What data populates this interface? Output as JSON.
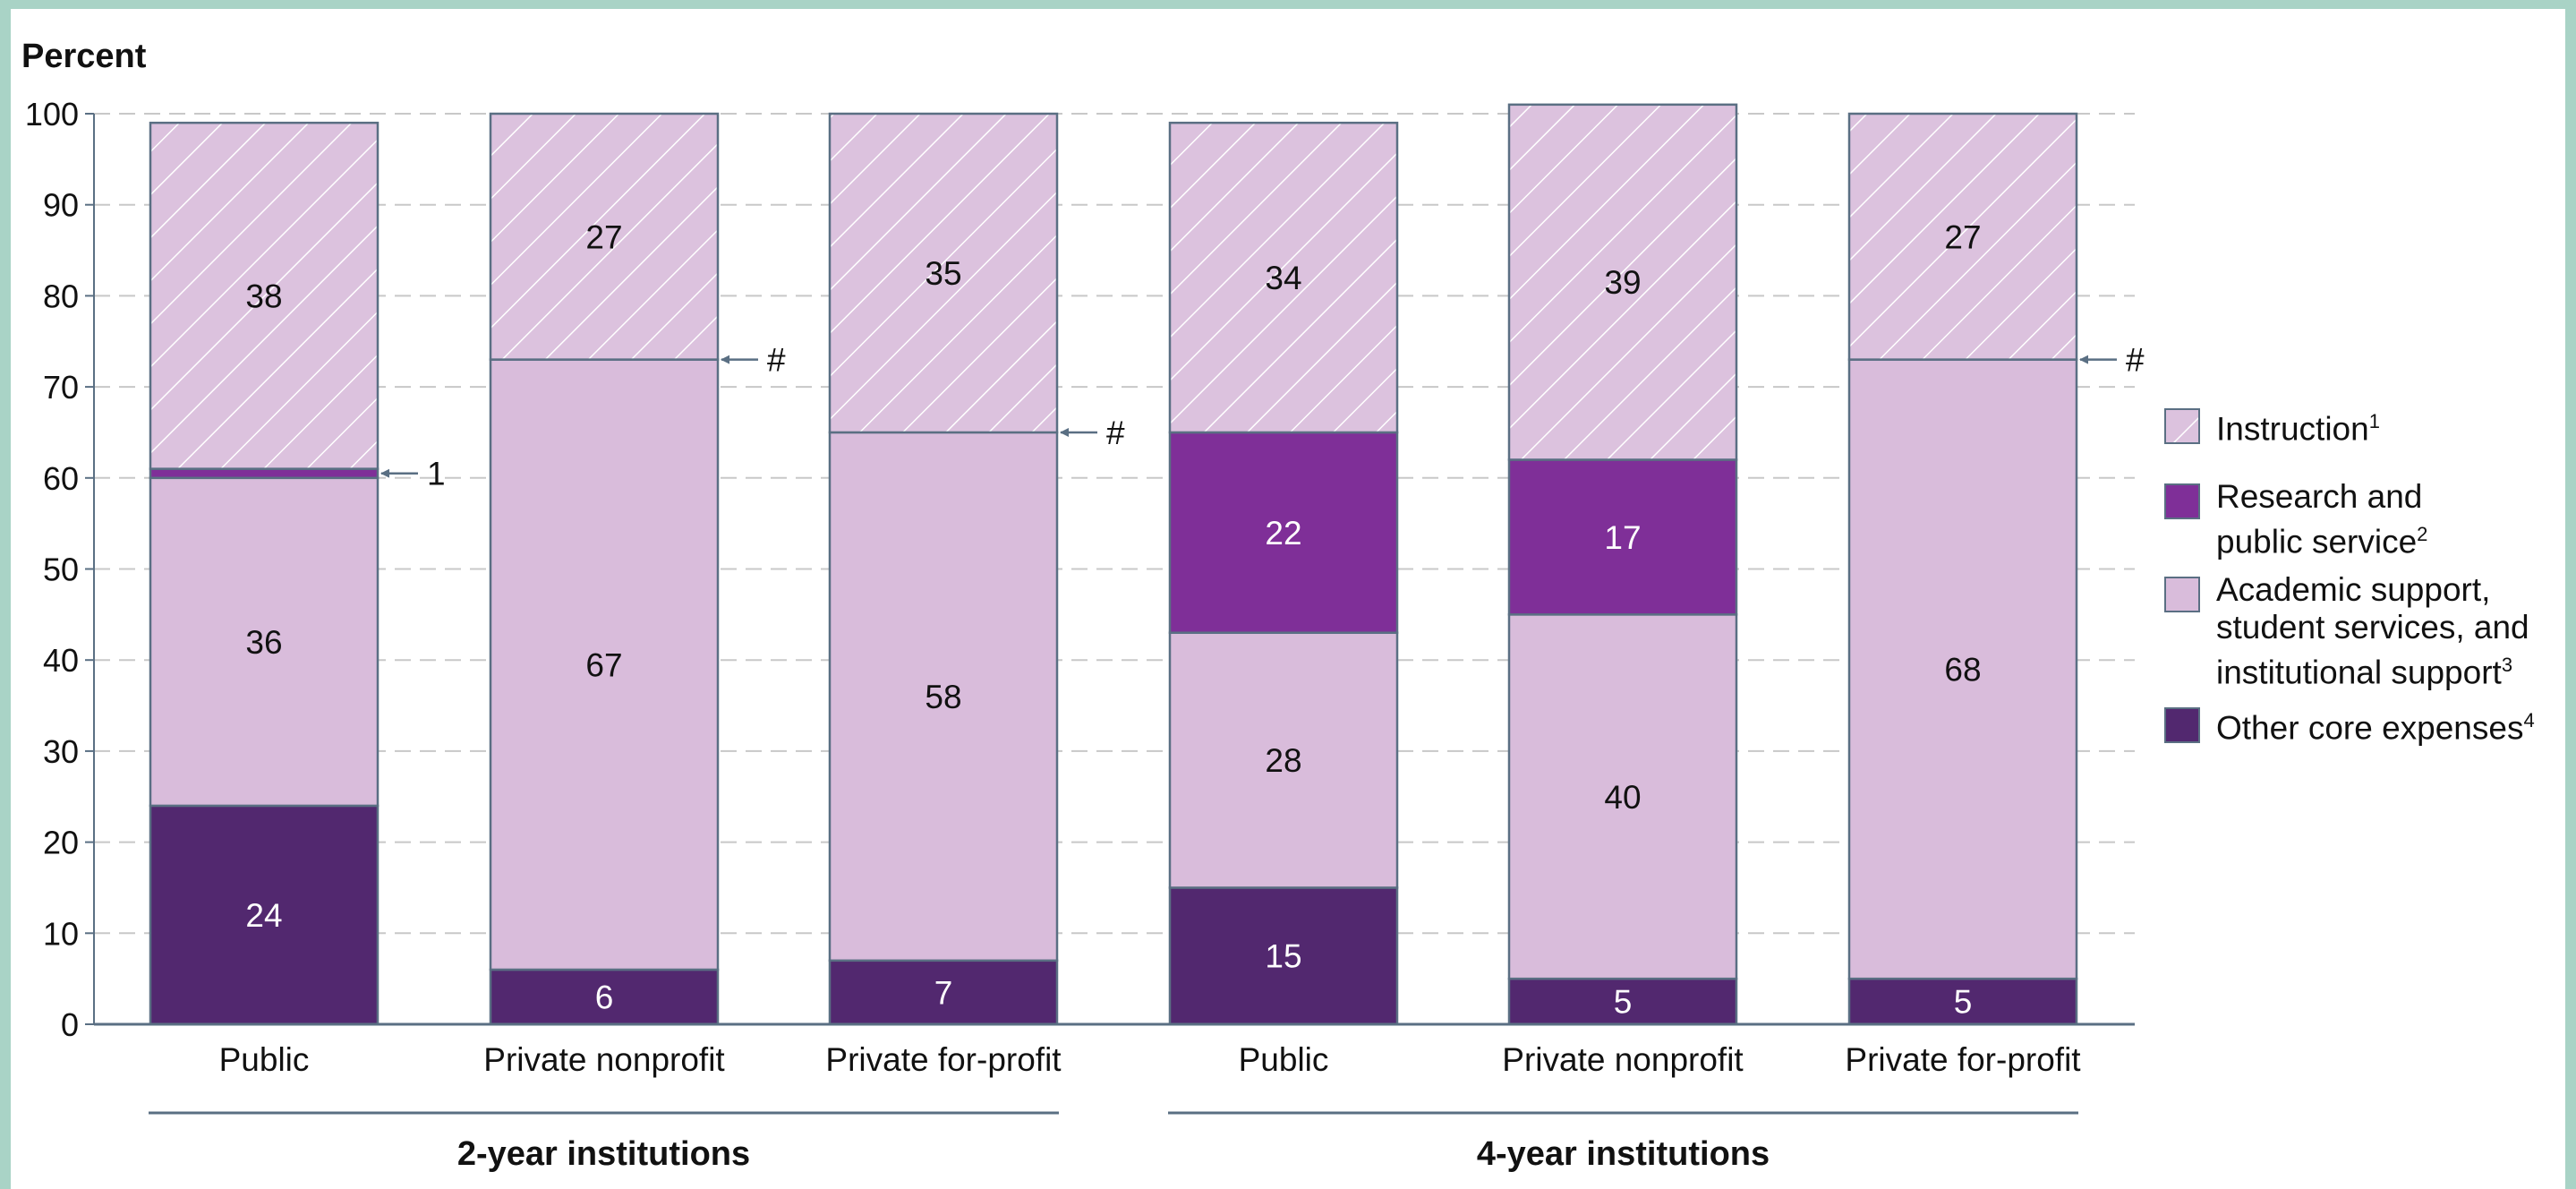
{
  "chart_data": {
    "type": "bar",
    "stacked": true,
    "ylabel": "Percent",
    "ylim": [
      0,
      100
    ],
    "yticks": [
      0,
      10,
      20,
      30,
      40,
      50,
      60,
      70,
      80,
      90,
      100
    ],
    "grid": true,
    "legend_position": "right",
    "categories": [
      "Public",
      "Private nonprofit",
      "Private for-profit",
      "Public",
      "Private nonprofit",
      "Private for-profit"
    ],
    "groups": [
      {
        "label": "2-year institutions",
        "categories": [
          0,
          1,
          2
        ]
      },
      {
        "label": "4-year institutions",
        "categories": [
          3,
          4,
          5
        ]
      }
    ],
    "series": [
      {
        "name": "Other core expenses",
        "sup": "4",
        "color": "#52286f",
        "label_color": "#ffffff",
        "values": [
          24,
          6,
          7,
          15,
          5,
          5
        ],
        "labels": [
          "24",
          "6",
          "7",
          "15",
          "5",
          "5"
        ]
      },
      {
        "name": "Academic support, student services, and institutional support",
        "sup": "3",
        "color": "#d9bcdb",
        "label_color": "#111111",
        "values": [
          36,
          67,
          58,
          28,
          40,
          68
        ],
        "labels": [
          "36",
          "67",
          "58",
          "28",
          "40",
          "68"
        ]
      },
      {
        "name": "Research and public service",
        "sup": "2",
        "color": "#7f2f98",
        "label_color": "#ffffff",
        "values": [
          1,
          0,
          0,
          22,
          17,
          0
        ],
        "labels": [
          "",
          "",
          "",
          "22",
          "17",
          ""
        ]
      },
      {
        "name": "Instruction",
        "sup": "1",
        "color": "#dcc2de",
        "hatch_color": "#ffffff",
        "label_color": "#111111",
        "values": [
          38,
          27,
          35,
          34,
          39,
          27
        ],
        "labels": [
          "38",
          "27",
          "35",
          "34",
          "39",
          "27"
        ]
      }
    ],
    "annotations": [
      {
        "category": 0,
        "text": "1"
      },
      {
        "category": 1,
        "text": "#"
      },
      {
        "category": 2,
        "text": "#"
      },
      {
        "category": 5,
        "text": "#"
      }
    ]
  },
  "legend": {
    "items": [
      {
        "label": "Instruction",
        "sup": "1",
        "swatch": "hatched"
      },
      {
        "label": "Research and\npublic service",
        "sup": "2",
        "swatch": "#7f2f98"
      },
      {
        "label": "Academic support,\nstudent services, and\ninstitutional support",
        "sup": "3",
        "swatch": "#d9bcdb"
      },
      {
        "label": "Other core expenses",
        "sup": "4",
        "swatch": "#52286f"
      }
    ]
  },
  "colors": {
    "axis": "#5a6f83",
    "grid": "#c8c8c8",
    "bar_outline": "#5a6f83",
    "frame": "#a9d3c6"
  }
}
